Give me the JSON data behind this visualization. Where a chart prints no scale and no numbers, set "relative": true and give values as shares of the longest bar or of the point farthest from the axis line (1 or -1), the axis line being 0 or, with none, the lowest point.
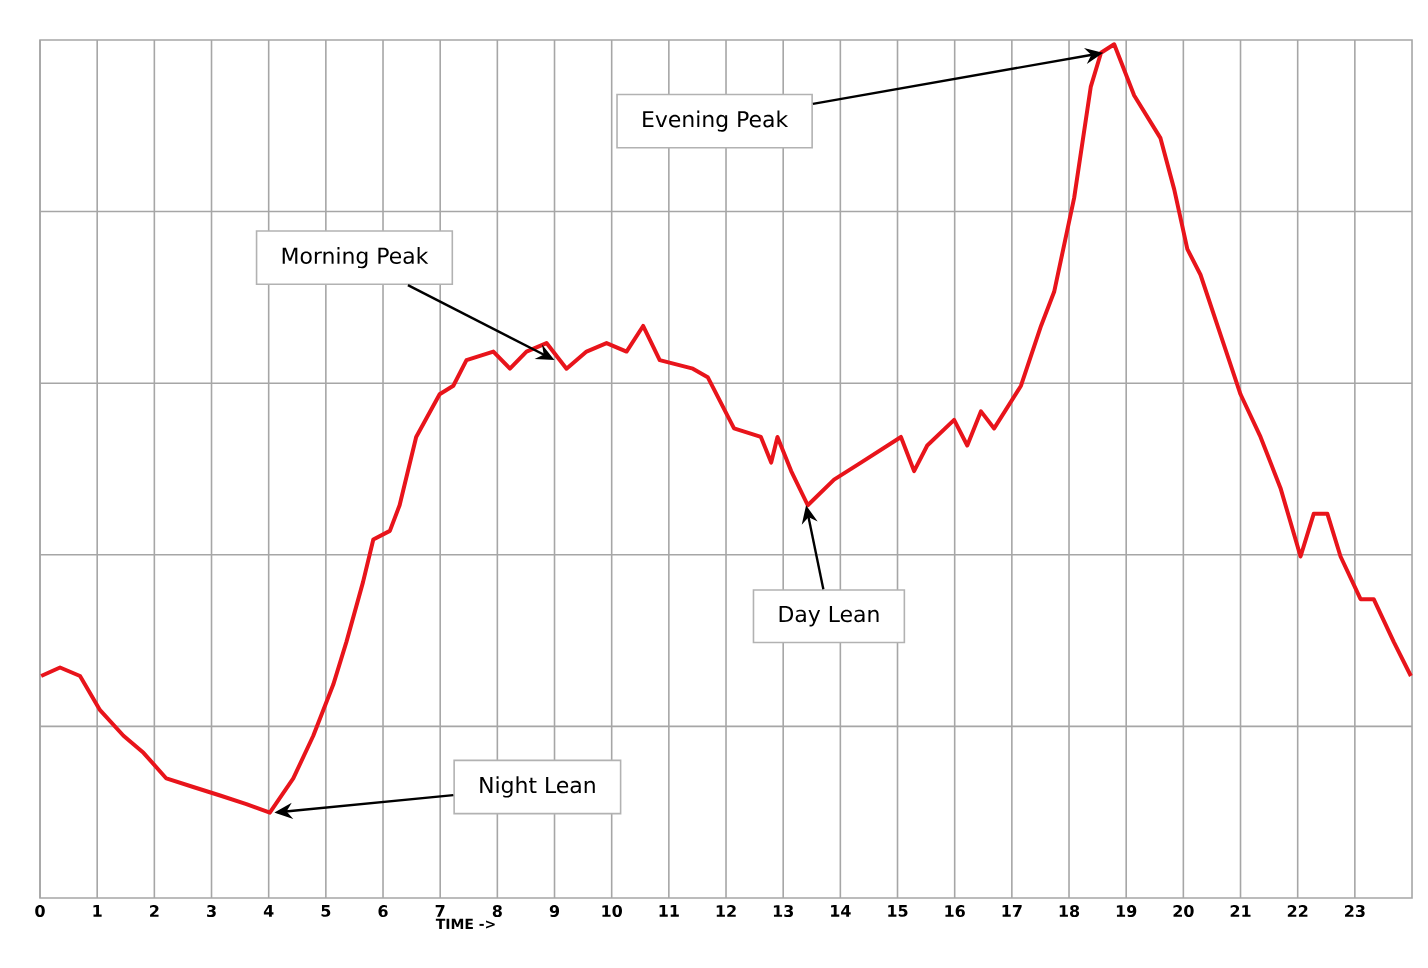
{
  "chart_data": {
    "type": "line",
    "relative": true,
    "xlabel": "TIME ->",
    "color": "#e8141b",
    "grid": true,
    "xlim": [
      0,
      24
    ],
    "xticks": [
      0,
      1,
      2,
      3,
      4,
      5,
      6,
      7,
      8,
      9,
      10,
      11,
      12,
      13,
      14,
      15,
      16,
      17,
      18,
      19,
      20,
      21,
      22,
      23
    ],
    "x": [
      0.02,
      0.35,
      0.7,
      1.05,
      1.46,
      1.81,
      2.21,
      2.68,
      3.15,
      3.61,
      4.02,
      4.43,
      4.78,
      5.13,
      5.36,
      5.65,
      5.83,
      6.12,
      6.29,
      6.58,
      6.99,
      7.23,
      7.46,
      7.93,
      8.22,
      8.51,
      8.86,
      9.21,
      9.56,
      9.91,
      10.26,
      10.55,
      10.84,
      11.42,
      11.68,
      12.14,
      12.61,
      12.79,
      12.9,
      13.14,
      13.43,
      13.89,
      14.36,
      15.06,
      15.29,
      15.52,
      15.99,
      16.22,
      16.46,
      16.69,
      17.16,
      17.51,
      17.74,
      18.09,
      18.38,
      18.56,
      18.79,
      19.14,
      19.6,
      19.84,
      20.07,
      20.3,
      20.65,
      21.0,
      21.35,
      21.7,
      22.05,
      22.28,
      22.52,
      22.75,
      23.1,
      23.33,
      23.68,
      23.98
    ],
    "values": [
      0.26,
      0.27,
      0.26,
      0.22,
      0.19,
      0.17,
      0.14,
      0.13,
      0.12,
      0.11,
      0.1,
      0.14,
      0.19,
      0.25,
      0.3,
      0.37,
      0.42,
      0.43,
      0.46,
      0.54,
      0.59,
      0.6,
      0.63,
      0.64,
      0.62,
      0.64,
      0.65,
      0.62,
      0.64,
      0.65,
      0.64,
      0.67,
      0.63,
      0.62,
      0.61,
      0.55,
      0.54,
      0.51,
      0.54,
      0.5,
      0.46,
      0.49,
      0.51,
      0.54,
      0.5,
      0.53,
      0.56,
      0.53,
      0.57,
      0.55,
      0.6,
      0.67,
      0.71,
      0.82,
      0.95,
      0.99,
      1.0,
      0.94,
      0.89,
      0.83,
      0.76,
      0.73,
      0.66,
      0.59,
      0.54,
      0.48,
      0.4,
      0.45,
      0.45,
      0.4,
      0.35,
      0.35,
      0.3,
      0.26
    ],
    "annotations": [
      {
        "text": "Evening Peak",
        "x": 18.6,
        "y": 0.99
      },
      {
        "text": "Morning Peak",
        "x": 9.0,
        "y": 0.63
      },
      {
        "text": "Day Lean",
        "x": 13.4,
        "y": 0.46
      },
      {
        "text": "Night Lean",
        "x": 4.1,
        "y": 0.1
      }
    ]
  }
}
